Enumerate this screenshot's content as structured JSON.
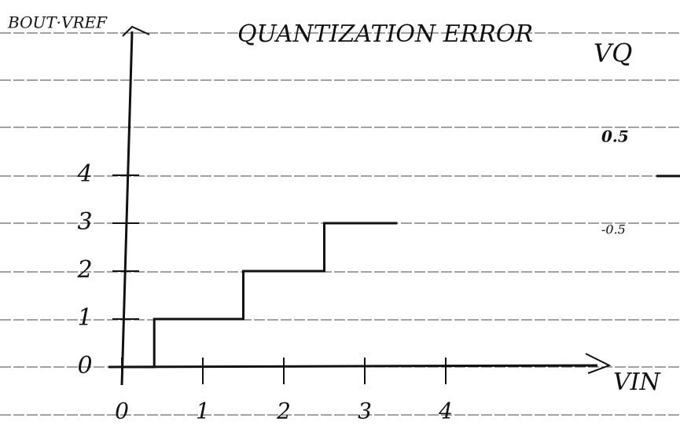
{
  "chart_data": {
    "type": "line",
    "title": "QUANTIZATION ERROR",
    "y_label": "BOUT·VREF",
    "x_label": "VIN",
    "annotations": [
      "VQ",
      "0.5",
      "-0.5"
    ],
    "x": [
      0,
      0.4,
      0.4,
      1.5,
      1.5,
      2.5,
      2.5,
      3.4
    ],
    "series": [
      {
        "color": "#111111",
        "values": [
          0,
          0,
          1,
          1,
          2,
          2,
          3,
          3
        ]
      }
    ],
    "xlim": [
      0,
      6
    ],
    "ylim": [
      0,
      7
    ],
    "xticks": [
      0,
      1,
      2,
      3,
      4
    ],
    "yticks": [
      0,
      1,
      2,
      3,
      4
    ]
  }
}
